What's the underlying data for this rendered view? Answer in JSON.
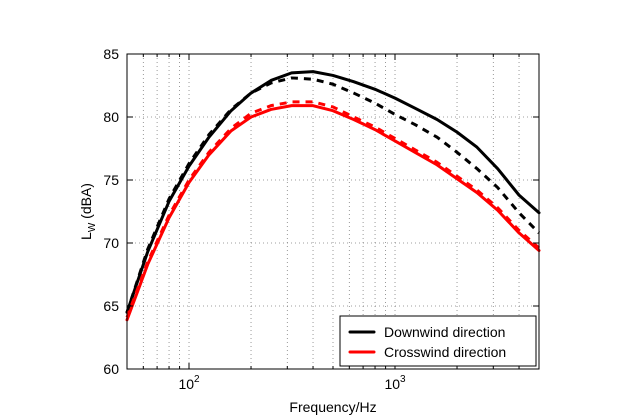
{
  "chart_data": {
    "type": "line",
    "xscale": "log",
    "xlim": [
      50,
      5000
    ],
    "ylim": [
      60,
      85
    ],
    "xlabel": "Frequency/Hz",
    "ylabel": {
      "main": "L",
      "subscript": "W",
      "suffix": " (dBA)"
    },
    "yticks": [
      60,
      65,
      70,
      75,
      80,
      85
    ],
    "xticks_major": [
      {
        "value": 100,
        "label_base": "10",
        "label_exp": "2"
      },
      {
        "value": 1000,
        "label_base": "10",
        "label_exp": "3"
      }
    ],
    "xticks_minor": [
      50,
      60,
      70,
      80,
      90,
      200,
      300,
      400,
      500,
      600,
      700,
      800,
      900,
      2000,
      3000,
      4000,
      5000
    ],
    "grid": "dotted",
    "legend_location": "bottom-right",
    "legend": [
      {
        "label": "Downwind direction",
        "color": "#000000"
      },
      {
        "label": "Crosswind direction",
        "color": "#ff0000"
      }
    ],
    "series": [
      {
        "color": "#000000",
        "style": "solid",
        "x": [
          50,
          63,
          80,
          100,
          125,
          160,
          200,
          250,
          315,
          400,
          500,
          630,
          800,
          1000,
          1250,
          1600,
          2000,
          2500,
          3150,
          4000,
          5000
        ],
        "y": [
          64.5,
          69.3,
          73.3,
          76.1,
          78.4,
          80.5,
          81.9,
          82.9,
          83.5,
          83.6,
          83.3,
          82.8,
          82.2,
          81.5,
          80.7,
          79.8,
          78.8,
          77.6,
          75.9,
          73.8,
          72.4
        ]
      },
      {
        "color": "#000000",
        "style": "dashed",
        "x": [
          50,
          63,
          80,
          100,
          125,
          160,
          200,
          250,
          315,
          400,
          500,
          630,
          800,
          1000,
          1250,
          1600,
          2000,
          2500,
          3150,
          4000,
          5000
        ],
        "y": [
          64.5,
          69.5,
          73.5,
          76.3,
          78.6,
          80.6,
          81.9,
          82.7,
          83.1,
          83.0,
          82.6,
          81.9,
          81.1,
          80.2,
          79.4,
          78.4,
          77.2,
          75.9,
          74.4,
          72.4,
          70.8
        ]
      },
      {
        "color": "#ff0000",
        "style": "solid",
        "x": [
          50,
          63,
          80,
          100,
          125,
          160,
          200,
          250,
          315,
          400,
          500,
          630,
          800,
          1000,
          1250,
          1600,
          2000,
          2500,
          3150,
          4000,
          5000
        ],
        "y": [
          63.9,
          68.3,
          72.0,
          74.8,
          77.0,
          78.9,
          80.0,
          80.6,
          80.9,
          80.9,
          80.5,
          79.8,
          79.0,
          78.1,
          77.2,
          76.2,
          75.1,
          74.0,
          72.6,
          70.8,
          69.4
        ]
      },
      {
        "color": "#ff0000",
        "style": "dashed",
        "x": [
          50,
          63,
          80,
          100,
          125,
          160,
          200,
          250,
          315,
          400,
          500,
          630,
          800,
          1000,
          1250,
          1600,
          2000,
          2500,
          3150,
          4000,
          5000
        ],
        "y": [
          64.1,
          68.5,
          72.2,
          75.0,
          77.2,
          79.1,
          80.3,
          80.9,
          81.2,
          81.2,
          80.8,
          80.0,
          79.2,
          78.3,
          77.4,
          76.4,
          75.3,
          74.2,
          72.8,
          71.0,
          69.6
        ]
      }
    ]
  }
}
